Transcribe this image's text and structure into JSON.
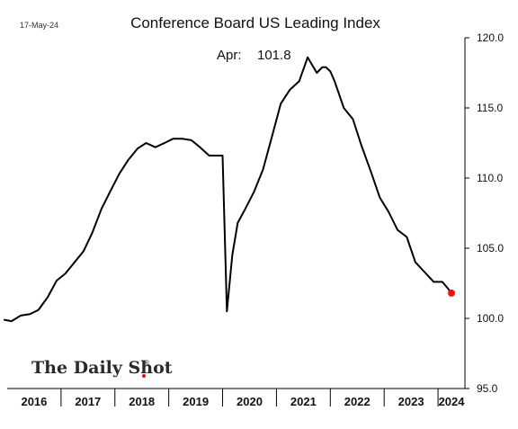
{
  "date_stamp": "17-May-24",
  "brand": {
    "name": "The Daily Shot",
    "mark": "®"
  },
  "chart_data": {
    "type": "line",
    "title": "Conference Board US Leading Index",
    "annotation": {
      "label": "Apr:",
      "value": "101.8"
    },
    "xlabel": "",
    "ylabel": "",
    "ylim": [
      95,
      120
    ],
    "yticks": [
      "95.0",
      "100.0",
      "105.0",
      "110.0",
      "115.0",
      "120.0"
    ],
    "xlim": [
      2016.0,
      2024.5
    ],
    "year_labels": [
      "2016",
      "2017",
      "2018",
      "2019",
      "2020",
      "2021",
      "2022",
      "2023",
      "2024"
    ],
    "y_axis_position": "right",
    "grid": false,
    "line_color": "#000000",
    "last_point_color": "#e8121a",
    "series": [
      {
        "x": [
          2015.95,
          2016.08,
          2016.25,
          2016.42,
          2016.58,
          2016.75,
          2016.92,
          2017.08,
          2017.25,
          2017.42,
          2017.58,
          2017.75,
          2017.92,
          2018.08,
          2018.25,
          2018.42,
          2018.58,
          2018.75,
          2018.92,
          2019.08,
          2019.25,
          2019.42,
          2019.58,
          2019.75,
          2019.92,
          2020.0,
          2020.08,
          2020.18,
          2020.28,
          2020.42,
          2020.58,
          2020.75,
          2020.92,
          2021.08,
          2021.25,
          2021.42,
          2021.58,
          2021.75,
          2021.85,
          2021.92,
          2022.0,
          2022.08,
          2022.25,
          2022.42,
          2022.58,
          2022.75,
          2022.92,
          2023.08,
          2023.25,
          2023.42,
          2023.58,
          2023.75,
          2023.92,
          2024.0,
          2024.08,
          2024.17,
          2024.25
        ],
        "y": [
          99.9,
          99.8,
          100.2,
          100.3,
          100.6,
          101.5,
          102.7,
          103.2,
          104.0,
          104.8,
          106.1,
          107.8,
          109.1,
          110.3,
          111.3,
          112.1,
          112.5,
          112.2,
          112.5,
          112.8,
          112.8,
          112.7,
          112.2,
          111.6,
          111.6,
          111.6,
          100.5,
          104.5,
          106.8,
          107.8,
          109.0,
          110.6,
          113.0,
          115.3,
          116.3,
          116.9,
          118.6,
          117.5,
          117.9,
          117.9,
          117.6,
          116.9,
          115.0,
          114.2,
          112.3,
          110.5,
          108.6,
          107.6,
          106.3,
          105.8,
          104.0,
          103.3,
          102.6,
          102.6,
          102.6,
          102.2,
          101.8
        ]
      }
    ]
  }
}
